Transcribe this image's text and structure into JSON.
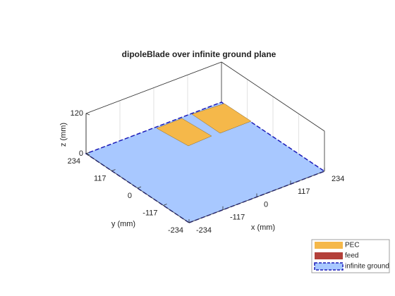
{
  "chart_data": {
    "type": "surface3d",
    "title": "dipoleBlade over infinite ground plane",
    "xlabel": "x (mm)",
    "ylabel": "y (mm)",
    "zlabel": "z (mm)",
    "xlim": [
      -234,
      234
    ],
    "ylim": [
      -234,
      234
    ],
    "zlim": [
      0,
      120
    ],
    "xticks": [
      -234,
      -117,
      0,
      117,
      234
    ],
    "yticks": [
      -234,
      -117,
      0,
      117,
      234
    ],
    "zticks": [
      0,
      120
    ],
    "grid": true,
    "legend": {
      "position": "southeast",
      "entries": [
        {
          "name": "PEC",
          "color": "#f5b84a"
        },
        {
          "name": "feed",
          "color": "#b3403a"
        },
        {
          "name": "infinite ground",
          "color": "#a8c8ff",
          "edge": "#1a1ab8"
        }
      ]
    }
  }
}
